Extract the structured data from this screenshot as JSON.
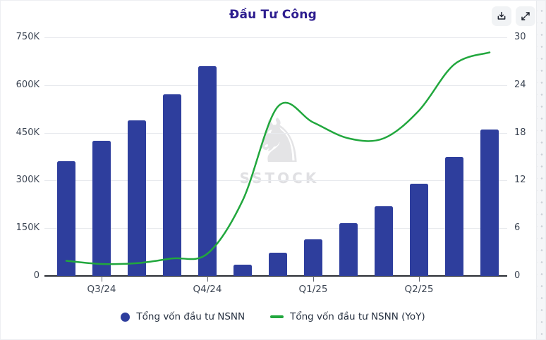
{
  "header": {
    "title": "Đầu Tư Công",
    "buttons": [
      {
        "label": "download",
        "icon": "download-icon"
      },
      {
        "label": "expand",
        "icon": "expand-fullscreen-icon"
      }
    ]
  },
  "watermark": {
    "icon": "horse-logo-icon",
    "text": "SSTOCK"
  },
  "chart_data": {
    "type": "bar",
    "combo": "bar + line, dual y-axis",
    "title": "Đầu Tư Công",
    "num_points": 13,
    "x_tick_labels": [
      "Q3/24",
      "Q4/24",
      "Q1/25",
      "Q2/25"
    ],
    "x_tick_point_indices": [
      1,
      4,
      7,
      10
    ],
    "series": [
      {
        "name": "Tổng vốn đầu tư NSNN",
        "type": "bar",
        "axis": "left",
        "color": "#2e3e9d",
        "values": [
          360000,
          425000,
          490000,
          570000,
          660000,
          35000,
          72000,
          115000,
          165000,
          220000,
          290000,
          375000,
          460000
        ]
      },
      {
        "name": "Tổng vốn đầu tư NSNN (YoY)",
        "type": "line",
        "axis": "right",
        "color": "#21a73d",
        "values": [
          1.9,
          1.5,
          1.6,
          2.2,
          2.8,
          9.5,
          21.3,
          19.3,
          17.3,
          17.3,
          20.8,
          26.6,
          28.1
        ]
      }
    ],
    "left_axis": {
      "min": 0,
      "max": 750000,
      "ticks": [
        "0",
        "150K",
        "300K",
        "450K",
        "600K",
        "750K"
      ]
    },
    "right_axis": {
      "min": 0,
      "max": 30,
      "ticks": [
        "0",
        "6",
        "12",
        "18",
        "24",
        "30"
      ]
    },
    "grid": "horizontal gridlines only",
    "legend_position": "bottom"
  }
}
